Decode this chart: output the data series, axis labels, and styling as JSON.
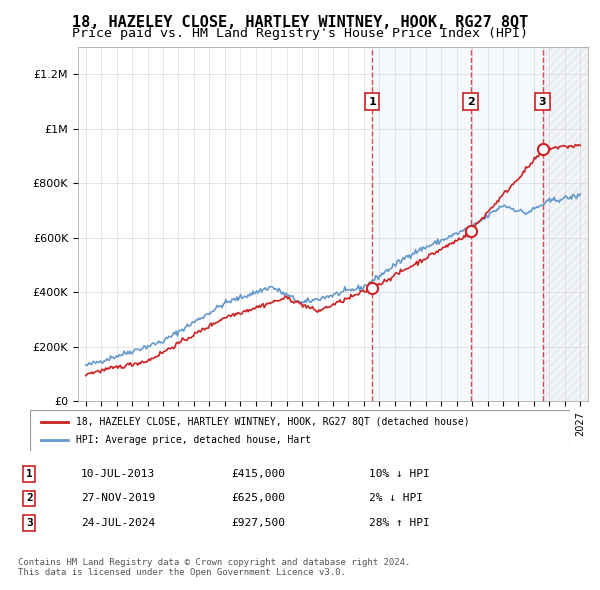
{
  "title": "18, HAZELEY CLOSE, HARTLEY WINTNEY, HOOK, RG27 8QT",
  "subtitle": "Price paid vs. HM Land Registry's House Price Index (HPI)",
  "title_fontsize": 11,
  "subtitle_fontsize": 9.5,
  "ylim": [
    0,
    1300000
  ],
  "yticks": [
    0,
    200000,
    400000,
    600000,
    800000,
    1000000,
    1200000
  ],
  "ytick_labels": [
    "£0",
    "£200K",
    "£400K",
    "£600K",
    "£800K",
    "£1M",
    "£1.2M"
  ],
  "line_color_hpi": "#6699cc",
  "line_color_price": "#cc2222",
  "sale_dates_year": [
    2013.53,
    2019.9,
    2024.56
  ],
  "sale_prices": [
    415000,
    625000,
    927500
  ],
  "sale_labels": [
    "1",
    "2",
    "3"
  ],
  "vline_color": "#cc2222",
  "shade_color": "#ddeeff",
  "legend_label_price": "18, HAZELEY CLOSE, HARTLEY WINTNEY, HOOK, RG27 8QT (detached house)",
  "legend_label_hpi": "HPI: Average price, detached house, Hart",
  "table_rows": [
    [
      "1",
      "10-JUL-2013",
      "£415,000",
      "10% ↓ HPI"
    ],
    [
      "2",
      "27-NOV-2019",
      "£625,000",
      "2% ↓ HPI"
    ],
    [
      "3",
      "24-JUL-2024",
      "£927,500",
      "28% ↑ HPI"
    ]
  ],
  "footnote": "Contains HM Land Registry data © Crown copyright and database right 2024.\nThis data is licensed under the Open Government Licence v3.0.",
  "background_color": "#ffffff",
  "plot_bg_color": "#ffffff"
}
